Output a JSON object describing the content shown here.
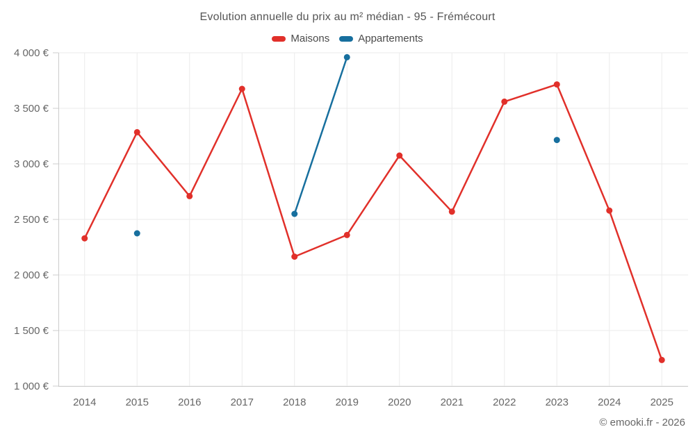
{
  "chart_data": {
    "type": "line",
    "title": "Evolution annuelle du prix au m² médian - 95 - Frémécourt",
    "categories": [
      "2014",
      "2015",
      "2016",
      "2017",
      "2018",
      "2019",
      "2020",
      "2021",
      "2022",
      "2023",
      "2024",
      "2025"
    ],
    "series": [
      {
        "name": "Maisons",
        "color": "#e1302a",
        "values": [
          2330,
          3285,
          2710,
          3675,
          2165,
          2360,
          3075,
          2570,
          3560,
          3715,
          2580,
          1235
        ]
      },
      {
        "name": "Appartements",
        "color": "#176f9e",
        "values": [
          null,
          2375,
          null,
          null,
          2550,
          3960,
          null,
          null,
          null,
          3215,
          null,
          null
        ]
      }
    ],
    "ylim": [
      1000,
      4000
    ],
    "yticks": [
      {
        "value": 1000,
        "label": "1 000 €"
      },
      {
        "value": 1500,
        "label": "1 500 €"
      },
      {
        "value": 2000,
        "label": "2 000 €"
      },
      {
        "value": 2500,
        "label": "2 500 €"
      },
      {
        "value": 3000,
        "label": "3 000 €"
      },
      {
        "value": 3500,
        "label": "3 500 €"
      },
      {
        "value": 4000,
        "label": "4 000 €"
      }
    ],
    "grid": true,
    "legend_position": "top",
    "credit": "© emooki.fr - 2026",
    "colors": {
      "grid": "#ebebeb",
      "axis": "#cccccc",
      "tick_label": "#666666",
      "title_text": "#555555"
    }
  }
}
